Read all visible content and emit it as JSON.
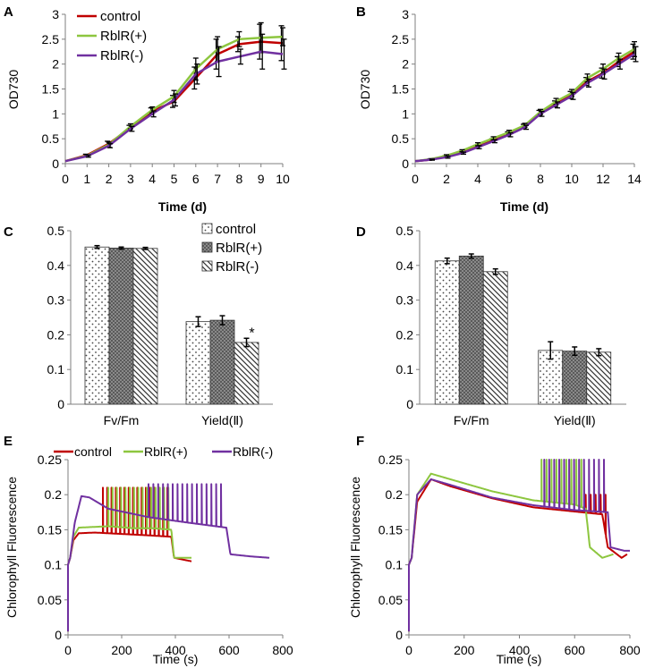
{
  "colors": {
    "control": "#c00000",
    "rblr_plus": "#8dc63f",
    "rblr_minus": "#7030a0",
    "axis": "#7f7f7f",
    "bar_outline": "#333333"
  },
  "panels": {
    "A": "A",
    "B": "B",
    "C": "C",
    "D": "D",
    "E": "E",
    "F": "F"
  },
  "chart_data": [
    {
      "panel": "A",
      "type": "line",
      "xlabel": "Time (d)",
      "ylabel": "OD730",
      "xlim": [
        0,
        10
      ],
      "ylim": [
        0,
        3
      ],
      "xticks": [
        "0",
        "1",
        "2",
        "3",
        "4",
        "5",
        "6",
        "7",
        "8",
        "9",
        "10"
      ],
      "yticks": [
        "0",
        "0.5",
        "1",
        "1.5",
        "2",
        "2.5",
        "3"
      ],
      "legend": [
        "control",
        "RblR(+)",
        "RblR(-)"
      ],
      "legend_position": "top-left",
      "x": [
        0,
        1,
        2,
        3,
        4,
        5,
        6,
        7,
        8,
        9,
        10
      ],
      "series": [
        {
          "name": "control",
          "values": [
            0.05,
            0.17,
            0.4,
            0.72,
            1.05,
            1.25,
            1.72,
            2.2,
            2.4,
            2.45,
            2.42
          ],
          "err": [
            0,
            0.02,
            0.05,
            0.05,
            0.07,
            0.12,
            0.22,
            0.3,
            0.15,
            0.35,
            0.35
          ]
        },
        {
          "name": "RblR(+)",
          "values": [
            0.05,
            0.16,
            0.38,
            0.75,
            1.08,
            1.35,
            1.9,
            2.3,
            2.5,
            2.53,
            2.55
          ],
          "err": [
            0,
            0.02,
            0.05,
            0.05,
            0.06,
            0.12,
            0.22,
            0.25,
            0.15,
            0.3,
            0.18
          ]
        },
        {
          "name": "RblR(-)",
          "values": [
            0.05,
            0.15,
            0.36,
            0.7,
            1.0,
            1.28,
            1.8,
            2.05,
            2.15,
            2.25,
            2.2
          ],
          "err": [
            0,
            0.02,
            0.04,
            0.05,
            0.06,
            0.12,
            0.2,
            0.3,
            0.15,
            0.35,
            0.3
          ]
        }
      ]
    },
    {
      "panel": "B",
      "type": "line",
      "xlabel": "Time (d)",
      "ylabel": "OD730",
      "xlim": [
        0,
        14
      ],
      "ylim": [
        0,
        3
      ],
      "xticks": [
        "0",
        "2",
        "4",
        "6",
        "8",
        "10",
        "12",
        "14"
      ],
      "yticks": [
        "0",
        "0.5",
        "1",
        "1.5",
        "2",
        "2.5",
        "3"
      ],
      "x": [
        0,
        1,
        2,
        3,
        4,
        5,
        6,
        7,
        8,
        9,
        10,
        11,
        12,
        13,
        14
      ],
      "series": [
        {
          "name": "control",
          "values": [
            0.05,
            0.08,
            0.14,
            0.22,
            0.34,
            0.47,
            0.6,
            0.75,
            1.02,
            1.2,
            1.38,
            1.65,
            1.82,
            2.05,
            2.25
          ],
          "err": [
            0,
            0.01,
            0.02,
            0.02,
            0.03,
            0.03,
            0.04,
            0.04,
            0.05,
            0.06,
            0.07,
            0.08,
            0.1,
            0.1,
            0.15
          ]
        },
        {
          "name": "RblR(+)",
          "values": [
            0.05,
            0.09,
            0.16,
            0.26,
            0.39,
            0.51,
            0.63,
            0.77,
            1.04,
            1.25,
            1.42,
            1.72,
            1.9,
            2.12,
            2.3
          ],
          "err": [
            0,
            0.01,
            0.02,
            0.02,
            0.03,
            0.03,
            0.04,
            0.04,
            0.05,
            0.06,
            0.07,
            0.08,
            0.1,
            0.1,
            0.15
          ]
        },
        {
          "name": "RblR(-)",
          "values": [
            0.05,
            0.08,
            0.13,
            0.21,
            0.33,
            0.45,
            0.58,
            0.73,
            1.0,
            1.18,
            1.36,
            1.62,
            1.8,
            2.0,
            2.2
          ],
          "err": [
            0,
            0.01,
            0.02,
            0.02,
            0.03,
            0.03,
            0.04,
            0.04,
            0.05,
            0.06,
            0.07,
            0.08,
            0.1,
            0.1,
            0.15
          ]
        }
      ]
    },
    {
      "panel": "C",
      "type": "bar",
      "categories": [
        "Fv/Fm",
        "Yield(Ⅱ)"
      ],
      "ylim": [
        0,
        0.5
      ],
      "yticks": [
        "0",
        "0.1",
        "0.2",
        "0.3",
        "0.4",
        "0.5"
      ],
      "legend": [
        "control",
        "RblR(+)",
        "RblR(-)"
      ],
      "legend_position": "top-right",
      "annotation": "*",
      "series": [
        {
          "name": "control",
          "values": [
            0.453,
            0.238
          ],
          "err": [
            0.004,
            0.014
          ]
        },
        {
          "name": "RblR(+)",
          "values": [
            0.45,
            0.242
          ],
          "err": [
            0.003,
            0.013
          ]
        },
        {
          "name": "RblR(-)",
          "values": [
            0.449,
            0.178
          ],
          "err": [
            0.003,
            0.012
          ]
        }
      ]
    },
    {
      "panel": "D",
      "type": "bar",
      "categories": [
        "Fv/Fm",
        "Yield(Ⅱ)"
      ],
      "ylim": [
        0,
        0.5
      ],
      "yticks": [
        "0",
        "0.1",
        "0.2",
        "0.3",
        "0.4",
        "0.5"
      ],
      "series": [
        {
          "name": "control",
          "values": [
            0.413,
            0.155
          ],
          "err": [
            0.008,
            0.025
          ]
        },
        {
          "name": "RblR(+)",
          "values": [
            0.427,
            0.153
          ],
          "err": [
            0.006,
            0.012
          ]
        },
        {
          "name": "RblR(-)",
          "values": [
            0.382,
            0.15
          ],
          "err": [
            0.008,
            0.01
          ]
        }
      ]
    },
    {
      "panel": "E",
      "type": "line",
      "xlabel": "Time (s)",
      "ylabel": "Chlorophyll Fluorescence",
      "xlim": [
        0,
        800
      ],
      "ylim": [
        0,
        0.25
      ],
      "xticks": [
        "0",
        "200",
        "400",
        "600",
        "800"
      ],
      "yticks": [
        "0",
        "0.05",
        "0.1",
        "0.15",
        "0.2",
        "0.25"
      ],
      "legend": [
        "control",
        "RblR(+)",
        "RblR(-)"
      ],
      "legend_position": "top",
      "series": [
        {
          "name": "control",
          "points": [
            [
              0,
              0.1
            ],
            [
              8,
              0.11
            ],
            [
              20,
              0.135
            ],
            [
              40,
              0.145
            ],
            [
              100,
              0.146
            ],
            [
              200,
              0.144
            ],
            [
              300,
              0.142
            ],
            [
              385,
              0.14
            ],
            [
              395,
              0.11
            ],
            [
              460,
              0.105
            ]
          ],
          "pulse_start": 130,
          "pulse_end": 380,
          "pulse_step": 16,
          "pulse_peak": 0.21
        },
        {
          "name": "RblR(+)",
          "points": [
            [
              0,
              0.1
            ],
            [
              8,
              0.11
            ],
            [
              20,
              0.14
            ],
            [
              40,
              0.153
            ],
            [
              150,
              0.155
            ],
            [
              250,
              0.152
            ],
            [
              320,
              0.152
            ],
            [
              385,
              0.15
            ],
            [
              395,
              0.11
            ],
            [
              460,
              0.11
            ]
          ],
          "pulse_start": 150,
          "pulse_end": 380,
          "pulse_step": 16,
          "pulse_peak": 0.21
        },
        {
          "name": "RblR(-)",
          "points": [
            [
              0,
              0.1
            ],
            [
              8,
              0.11
            ],
            [
              25,
              0.16
            ],
            [
              50,
              0.198
            ],
            [
              80,
              0.196
            ],
            [
              150,
              0.18
            ],
            [
              300,
              0.168
            ],
            [
              450,
              0.16
            ],
            [
              590,
              0.153
            ],
            [
              605,
              0.115
            ],
            [
              680,
              0.112
            ],
            [
              750,
              0.11
            ]
          ],
          "pulse_start": 300,
          "pulse_end": 580,
          "pulse_step": 18,
          "pulse_peak": 0.215
        }
      ]
    },
    {
      "panel": "F",
      "type": "line",
      "xlabel": "Time (s)",
      "ylabel": "Chlorophyll Fluorescence",
      "xlim": [
        0,
        800
      ],
      "ylim": [
        0,
        0.25
      ],
      "xticks": [
        "0",
        "200",
        "400",
        "600",
        "800"
      ],
      "yticks": [
        "0",
        "0.05",
        "0.1",
        "0.15",
        "0.2",
        "0.25"
      ],
      "series": [
        {
          "name": "control",
          "points": [
            [
              0,
              0.1
            ],
            [
              10,
              0.11
            ],
            [
              30,
              0.19
            ],
            [
              80,
              0.222
            ],
            [
              150,
              0.212
            ],
            [
              300,
              0.195
            ],
            [
              450,
              0.182
            ],
            [
              550,
              0.178
            ],
            [
              700,
              0.172
            ],
            [
              720,
              0.125
            ],
            [
              770,
              0.11
            ],
            [
              790,
              0.115
            ]
          ],
          "pulse_start": 640,
          "pulse_end": 715,
          "pulse_step": 18,
          "pulse_peak": 0.2
        },
        {
          "name": "RblR(+)",
          "points": [
            [
              0,
              0.1
            ],
            [
              10,
              0.11
            ],
            [
              30,
              0.2
            ],
            [
              80,
              0.23
            ],
            [
              150,
              0.222
            ],
            [
              300,
              0.205
            ],
            [
              450,
              0.192
            ],
            [
              600,
              0.186
            ],
            [
              640,
              0.18
            ],
            [
              655,
              0.125
            ],
            [
              700,
              0.11
            ],
            [
              740,
              0.115
            ]
          ],
          "pulse_start": 480,
          "pulse_end": 640,
          "pulse_step": 18,
          "pulse_peak": 0.25
        },
        {
          "name": "RblR(-)",
          "points": [
            [
              0,
              0.1
            ],
            [
              10,
              0.11
            ],
            [
              30,
              0.2
            ],
            [
              80,
              0.222
            ],
            [
              150,
              0.214
            ],
            [
              300,
              0.196
            ],
            [
              450,
              0.185
            ],
            [
              600,
              0.178
            ],
            [
              720,
              0.175
            ],
            [
              730,
              0.125
            ],
            [
              780,
              0.12
            ],
            [
              800,
              0.12
            ]
          ],
          "pulse_start": 490,
          "pulse_end": 720,
          "pulse_step": 18,
          "pulse_peak": 0.25
        }
      ]
    }
  ]
}
